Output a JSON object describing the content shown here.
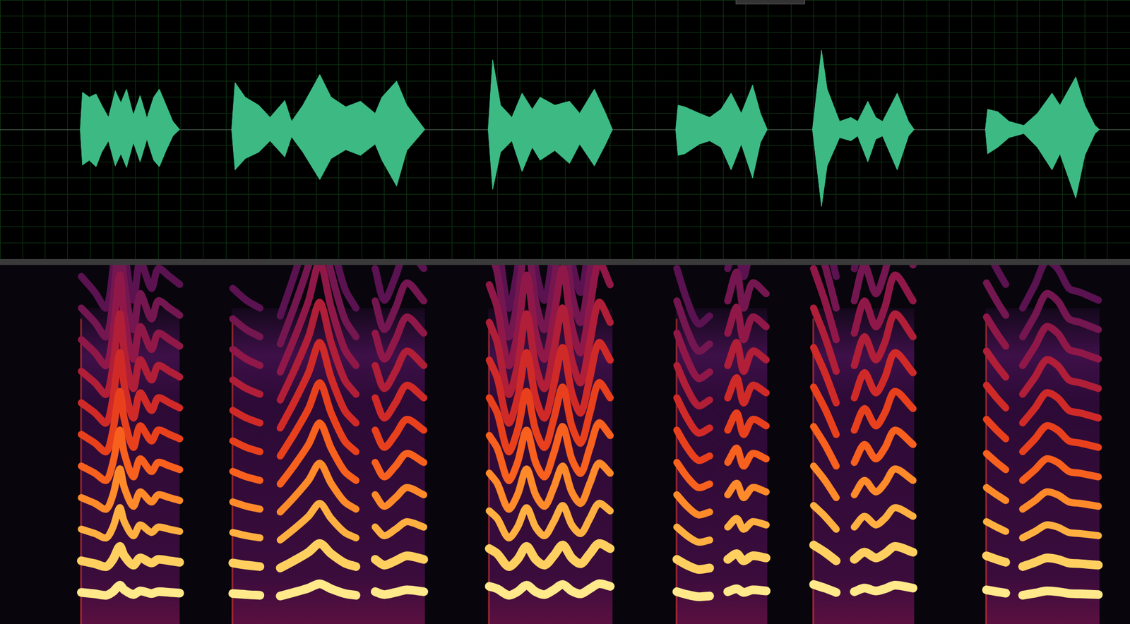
{
  "chart_data": [
    {
      "type": "area",
      "grid": true,
      "tick_labels": false,
      "color": "#3dba84",
      "xlim": [
        0,
        100
      ],
      "ylim": [
        -1.6,
        1.6
      ],
      "xticks": [
        0,
        2,
        4,
        6,
        8,
        10,
        12,
        14,
        16,
        18,
        20,
        22,
        24,
        26,
        28,
        30,
        32,
        34,
        36,
        38,
        40,
        42,
        44,
        46,
        48,
        50,
        52,
        54,
        56,
        58,
        60,
        62,
        64,
        66,
        68,
        70,
        72,
        74,
        76,
        78,
        80,
        82,
        84,
        86,
        88,
        90,
        92,
        94,
        96,
        98,
        100
      ],
      "yticks": [
        -1.6,
        -1.4,
        -1.2,
        -1,
        -0.8,
        -0.6,
        -0.4,
        -0.2,
        0,
        0.2,
        0.4,
        0.6,
        0.8,
        1,
        1.2,
        1.4,
        1.6
      ],
      "x": [
        7.1,
        7.3,
        7.9,
        8.5,
        9.0,
        9.6,
        10.2,
        10.7,
        11.2,
        11.8,
        12.4,
        13.0,
        13.6,
        14.1,
        14.7,
        15.3,
        15.9,
        18,
        20.5,
        20.8,
        21.7,
        22.9,
        23.9,
        25.2,
        25.8,
        26.8,
        28.3,
        29.3,
        30.6,
        31.9,
        33.2,
        33.8,
        35.1,
        36.0,
        37.6,
        40,
        43.2,
        43.6,
        44.3,
        45.3,
        46.2,
        47.1,
        47.8,
        49.1,
        50.4,
        51.3,
        52.6,
        53.6,
        54.2,
        57,
        59.8,
        60.0,
        60.6,
        61.9,
        62.8,
        63.8,
        64.7,
        65.6,
        66.6,
        67.3,
        67.9,
        70,
        71.9,
        72.7,
        73.2,
        74.3,
        75.3,
        75.9,
        76.8,
        77.5,
        78.1,
        79.4,
        80.4,
        80.9,
        84,
        87.2,
        87.4,
        88.3,
        89.3,
        90.6,
        91.8,
        93.1,
        93.8,
        95.2,
        96.0,
        96.9,
        97.3
      ],
      "upper": [
        0,
        0.46,
        0.4,
        0.44,
        0.3,
        0.15,
        0.48,
        0.33,
        0.5,
        0.18,
        0.42,
        0.14,
        0.4,
        0.5,
        0.3,
        0.1,
        0,
        null,
        0,
        0.58,
        0.4,
        0.3,
        0.15,
        0.36,
        0.1,
        0.3,
        0.68,
        0.4,
        0.28,
        0.35,
        0.2,
        0.4,
        0.6,
        0.3,
        0,
        null,
        0,
        0.86,
        0.3,
        0.15,
        0.45,
        0.25,
        0.4,
        0.3,
        0.35,
        0.2,
        0.5,
        0.2,
        0,
        null,
        0,
        0.3,
        0.28,
        0.2,
        0.15,
        0.25,
        0.45,
        0.2,
        0.55,
        0.2,
        0,
        null,
        0,
        0.98,
        0.5,
        0.1,
        0.15,
        0.1,
        0.35,
        0.15,
        0.1,
        0.45,
        0.1,
        0,
        null,
        0,
        0.25,
        0.22,
        0.1,
        0.05,
        0.2,
        0.45,
        0.3,
        0.65,
        0.3,
        0.05,
        0
      ],
      "lower": [
        0,
        -0.44,
        -0.38,
        -0.46,
        -0.28,
        -0.14,
        -0.45,
        -0.3,
        -0.47,
        -0.16,
        -0.4,
        -0.12,
        -0.38,
        -0.46,
        -0.26,
        -0.08,
        0,
        null,
        0,
        -0.5,
        -0.36,
        -0.28,
        -0.14,
        -0.34,
        -0.09,
        -0.28,
        -0.62,
        -0.36,
        -0.25,
        -0.32,
        -0.18,
        -0.38,
        -0.7,
        -0.26,
        0,
        null,
        0,
        -0.74,
        -0.28,
        -0.14,
        -0.52,
        -0.22,
        -0.38,
        -0.26,
        -0.42,
        -0.18,
        -0.45,
        -0.18,
        0,
        null,
        0,
        -0.32,
        -0.3,
        -0.18,
        -0.14,
        -0.22,
        -0.5,
        -0.18,
        -0.6,
        -0.16,
        0,
        null,
        0,
        -0.95,
        -0.45,
        -0.1,
        -0.14,
        -0.08,
        -0.4,
        -0.12,
        -0.08,
        -0.5,
        -0.08,
        0,
        null,
        0,
        -0.3,
        -0.22,
        -0.1,
        -0.05,
        -0.22,
        -0.5,
        -0.3,
        -0.85,
        -0.32,
        -0.05,
        0
      ]
    },
    {
      "type": "spectrogram",
      "grid": false,
      "tick_labels": false,
      "xlim": [
        0,
        100
      ],
      "ylim": [
        0,
        1
      ],
      "segments": [
        [
          7.1,
          15.9
        ],
        [
          20.5,
          37.6
        ],
        [
          43.2,
          54.2
        ],
        [
          59.8,
          67.9
        ],
        [
          71.9,
          80.9
        ],
        [
          87.2,
          97.3
        ]
      ],
      "x": [
        7.2,
        8.4,
        9.4,
        10.0,
        10.6,
        11.0,
        11.8,
        12.4,
        13.4,
        14.0,
        15.0,
        15.9,
        17,
        20.6,
        21.8,
        23.0,
        24.0,
        24.8,
        26.0,
        27.3,
        28.3,
        29.3,
        30.5,
        31.5,
        32.5,
        33.2,
        34.0,
        35.0,
        36.0,
        37.5,
        40,
        43.3,
        44.0,
        45.0,
        45.8,
        46.6,
        47.4,
        48.2,
        49.0,
        49.8,
        50.6,
        51.4,
        52.2,
        53.0,
        54.0,
        57,
        59.9,
        60.8,
        61.8,
        62.8,
        63.6,
        64.4,
        65.2,
        65.8,
        66.6,
        67.8,
        70,
        72.0,
        73.0,
        74.0,
        74.8,
        75.6,
        76.5,
        77.5,
        78.3,
        79.2,
        80.8,
        84,
        87.3,
        88.2,
        89.0,
        89.8,
        90.5,
        91.6,
        92.6,
        93.6,
        94.6,
        95.6,
        97.2
      ],
      "f0": [
        0.088,
        0.084,
        0.08,
        0.09,
        0.108,
        0.095,
        0.082,
        0.092,
        0.085,
        0.09,
        0.088,
        0.086,
        null,
        0.085,
        0.082,
        0.08,
        null,
        0.078,
        0.088,
        0.1,
        0.112,
        0.098,
        0.085,
        0.08,
        null,
        0.09,
        0.082,
        0.088,
        0.095,
        0.09,
        null,
        0.105,
        0.098,
        0.08,
        0.09,
        0.108,
        0.09,
        0.082,
        0.095,
        0.11,
        0.092,
        0.084,
        0.098,
        0.112,
        0.105,
        null,
        0.09,
        0.082,
        0.076,
        0.078,
        null,
        0.09,
        0.098,
        0.088,
        0.095,
        0.092,
        null,
        0.11,
        0.1,
        0.088,
        null,
        0.09,
        0.1,
        0.092,
        0.098,
        0.108,
        0.1,
        null,
        0.095,
        0.09,
        0.086,
        null,
        0.08,
        0.086,
        0.092,
        0.09,
        0.085,
        0.084,
        0.082
      ]
    }
  ]
}
